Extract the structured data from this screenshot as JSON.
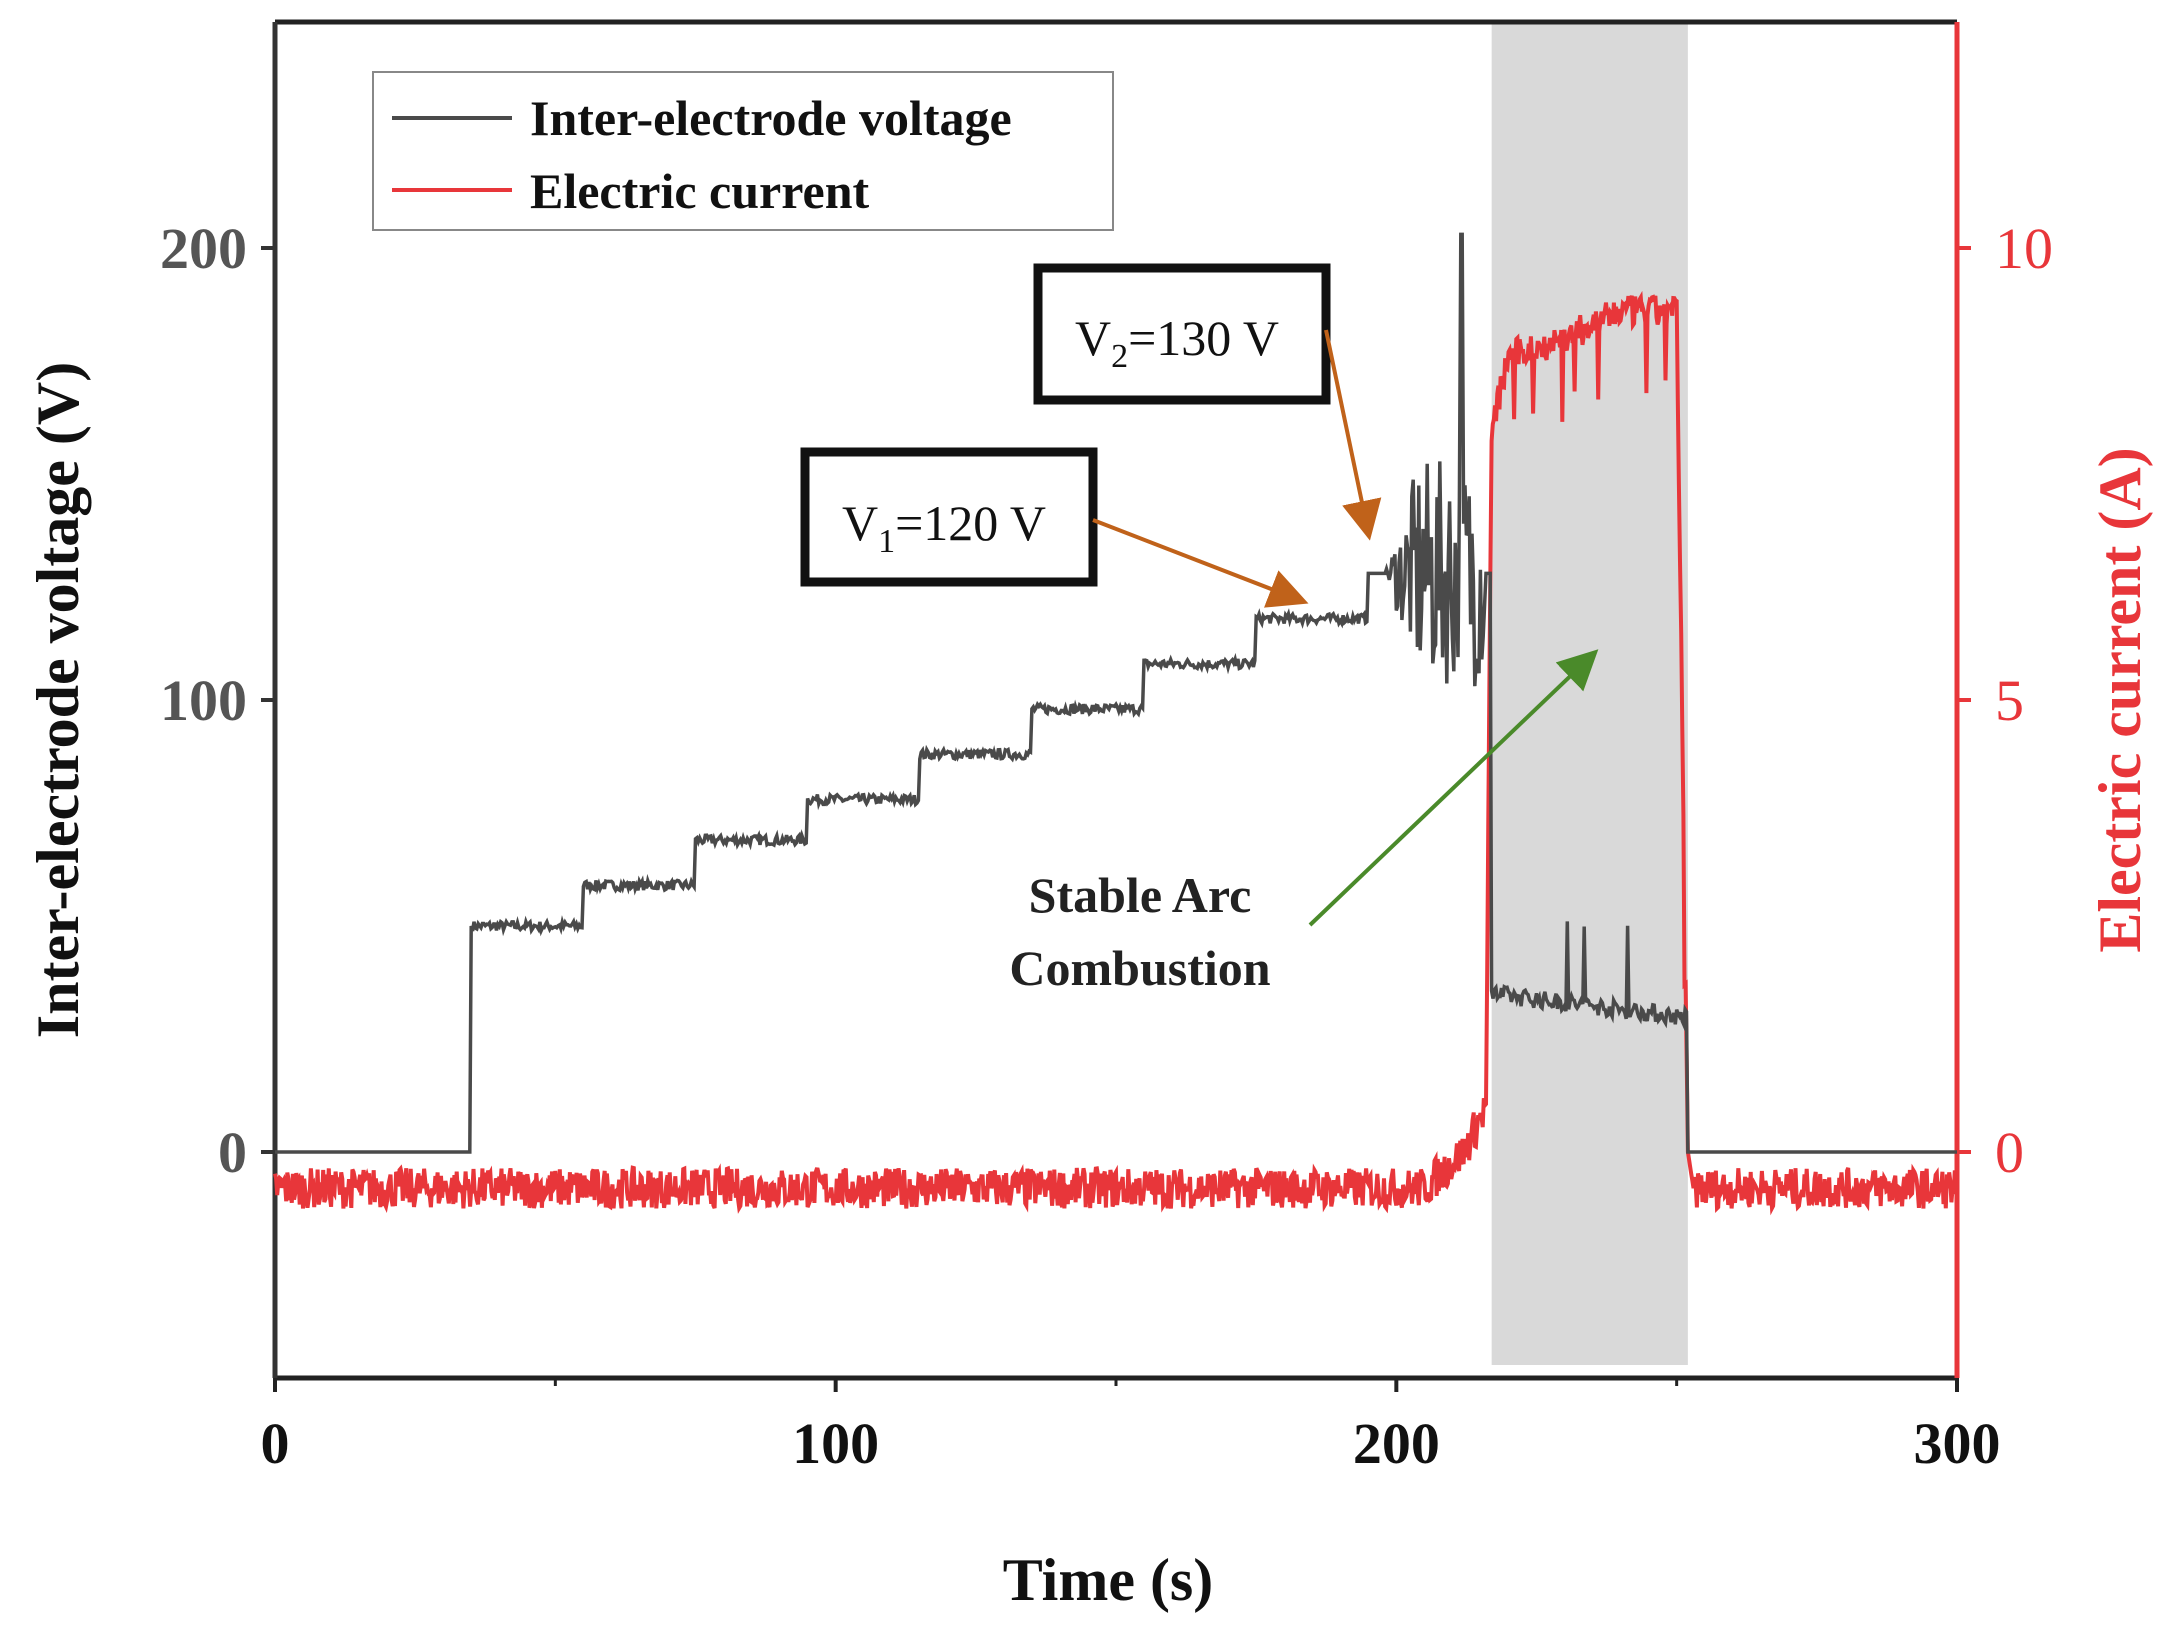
{
  "chart_data": {
    "type": "line",
    "xlabel": "Time (s)",
    "ylabel": "Inter-electrode voltage (V)",
    "y2label": "Electric current (A)",
    "xlim": [
      0,
      300
    ],
    "ylim": [
      -50,
      250
    ],
    "y2lim": [
      -2.5,
      12.5
    ],
    "xticks": [
      "0",
      "100",
      "200",
      "300"
    ],
    "yticks": [
      "0",
      "100",
      "200"
    ],
    "y2ticks": [
      "0",
      "5",
      "10"
    ],
    "xtick_values": [
      0,
      100,
      200,
      300
    ],
    "ytick_values": [
      0,
      100,
      200
    ],
    "y2tick_values": [
      0,
      5,
      10
    ],
    "legend": {
      "position": "top-left",
      "entries": [
        "Inter-electrode voltage",
        "Electric current"
      ]
    },
    "colors": {
      "voltage": "#4a4a4a",
      "current": "#e8363a",
      "shade": "#d9d9d9",
      "orange_arrow": "#c0621a",
      "green_arrow": "#4a8a2a"
    },
    "shaded_region": {
      "x_start": 217,
      "x_end": 252,
      "label": "Stable Arc Combustion"
    },
    "series": [
      {
        "name": "Inter-electrode voltage",
        "axis": "left",
        "step_times": [
          0,
          35,
          55,
          75,
          95,
          115,
          135,
          155,
          175,
          195,
          215,
          217,
          252,
          300
        ],
        "step_values": [
          0,
          50,
          59,
          69,
          78,
          88,
          98,
          108,
          118,
          128,
          128,
          35,
          0,
          0
        ]
      },
      {
        "name": "Electric current",
        "axis": "right",
        "x": [
          0,
          205,
          212,
          216,
          217,
          220,
          230,
          240,
          250,
          252,
          253,
          300
        ],
        "values": [
          -0.4,
          -0.4,
          0.0,
          0.5,
          8.0,
          8.8,
          9.0,
          9.3,
          9.3,
          0.0,
          -0.4,
          -0.4
        ]
      }
    ],
    "annotations": [
      {
        "text_parts": [
          "V",
          "1",
          "=120 V"
        ],
        "target_x": 183,
        "target_y": 122
      },
      {
        "text_parts": [
          "V",
          "2",
          "=130 V"
        ],
        "target_x": 195,
        "target_y": 137
      },
      {
        "text_lines": [
          "Stable Arc",
          "Combustion"
        ],
        "target_x": 235,
        "target_y": 110
      }
    ]
  }
}
